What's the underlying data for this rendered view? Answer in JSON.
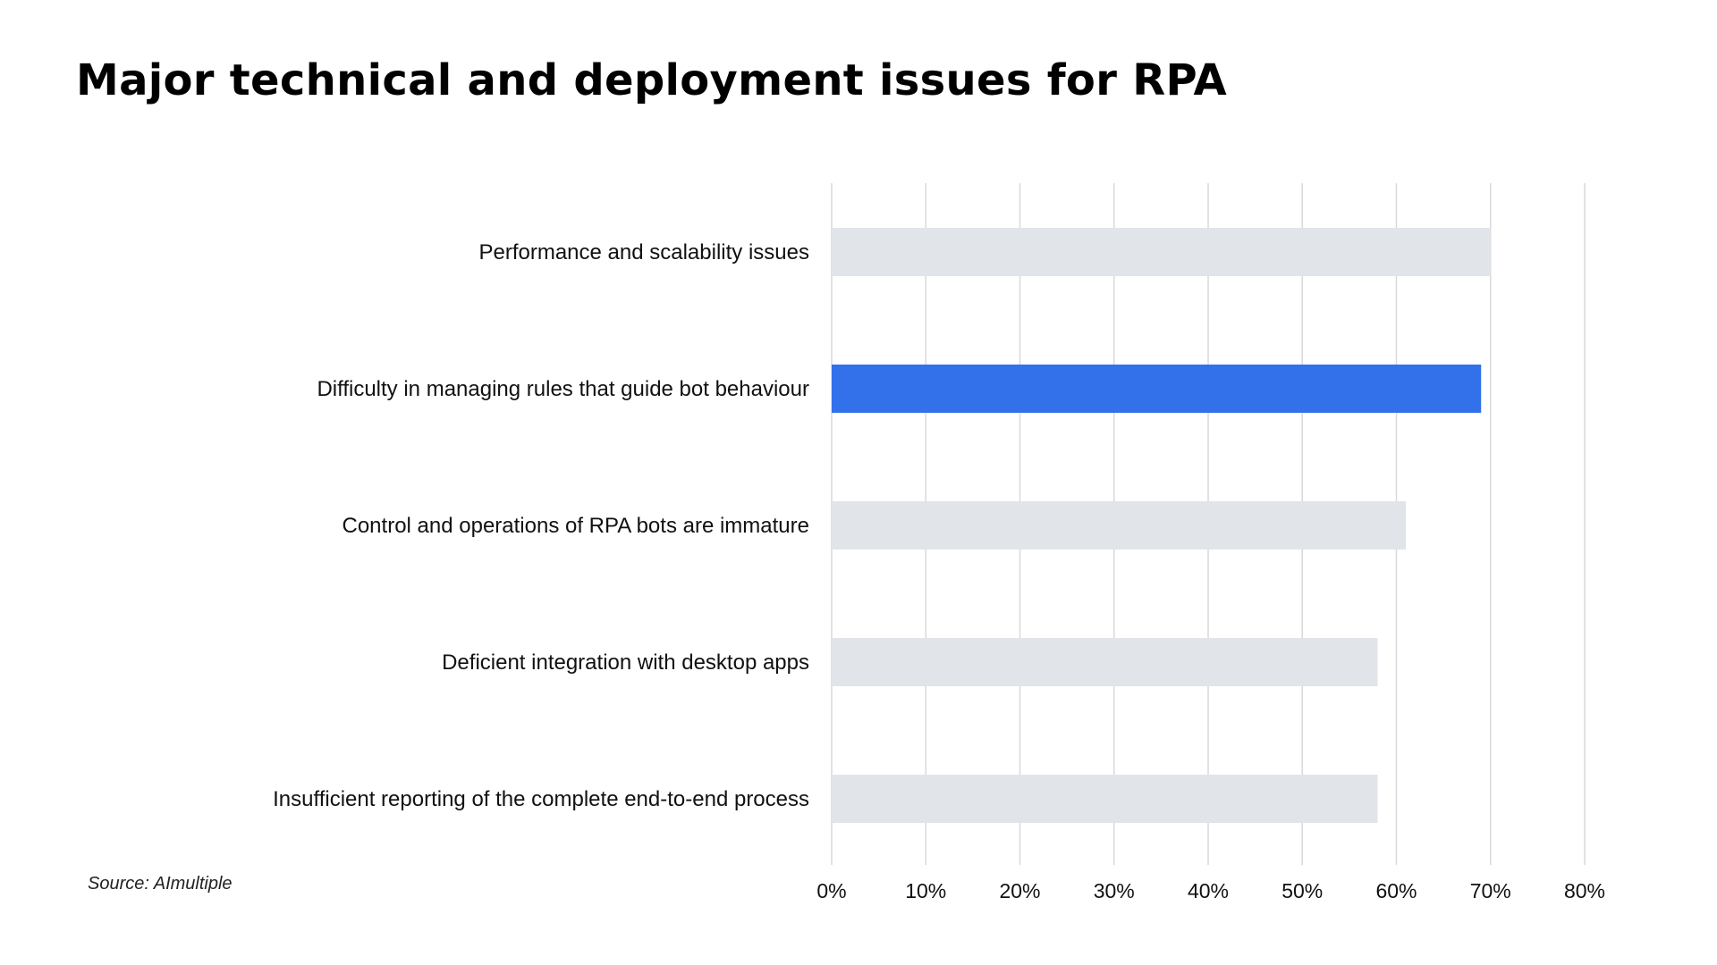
{
  "chart_data": {
    "type": "bar",
    "orientation": "horizontal",
    "title": "Major technical and deployment issues for RPA",
    "categories": [
      "Performance and scalability issues",
      "Difficulty in managing rules that guide bot behaviour",
      "Control and operations of RPA bots are immature",
      "Deficient integration with desktop apps",
      "Insufficient reporting of the complete end-to-end process"
    ],
    "values": [
      70,
      69,
      61,
      58,
      58
    ],
    "value_unit": "%",
    "highlight_index": 1,
    "xlim": [
      0,
      80
    ],
    "xticks": [
      "0%",
      "10%",
      "20%",
      "30%",
      "40%",
      "50%",
      "60%",
      "70%",
      "80%"
    ],
    "xlabel": "",
    "ylabel": "",
    "grid": true,
    "legend": "none"
  },
  "colors": {
    "bar_default": "#e1e4e8",
    "bar_highlight": "#3271ea",
    "grid": "#d9d9d9"
  },
  "source": "Source: AImultiple"
}
